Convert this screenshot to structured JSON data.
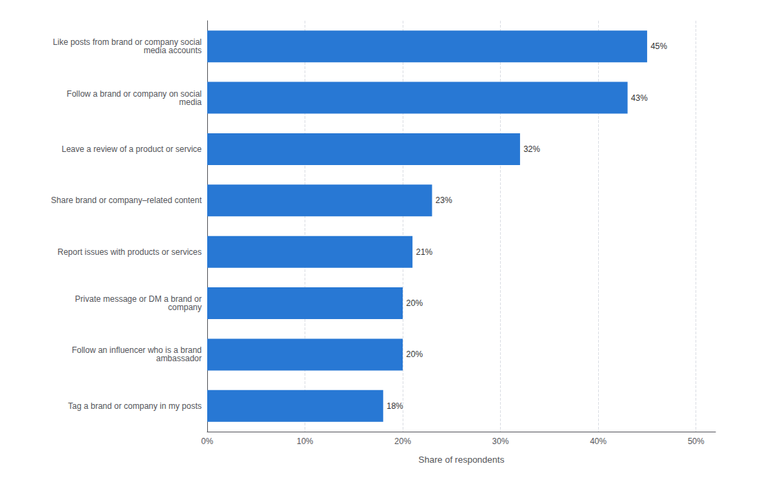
{
  "chart_data": {
    "type": "bar",
    "orientation": "horizontal",
    "categories": [
      "Tag a brand or company in my posts",
      "Follow an influencer who is a brand\nambassador",
      "Private message or DM a brand or\ncompany",
      "Report issues with products or services",
      "Share brand or company–related content",
      "Leave a review of a product or service",
      "Follow a brand or company on social\nmedia",
      "Like posts from brand or company social\nmedia accounts"
    ],
    "values": [
      18,
      20,
      20,
      21,
      23,
      32,
      43,
      45
    ],
    "value_labels": [
      "18%",
      "20%",
      "20%",
      "21%",
      "23%",
      "32%",
      "43%",
      "45%"
    ],
    "data_labels": true,
    "color": "#2878d4",
    "xlabel": "Share of respondents",
    "xlim": [
      0,
      52
    ],
    "xticks": [
      {
        "value": 0,
        "label": "0%"
      },
      {
        "value": 10,
        "label": "10%"
      },
      {
        "value": 20,
        "label": "20%"
      },
      {
        "value": 30,
        "label": "30%"
      },
      {
        "value": 40,
        "label": "40%"
      },
      {
        "value": 50,
        "label": "50%"
      }
    ],
    "grid": true
  }
}
